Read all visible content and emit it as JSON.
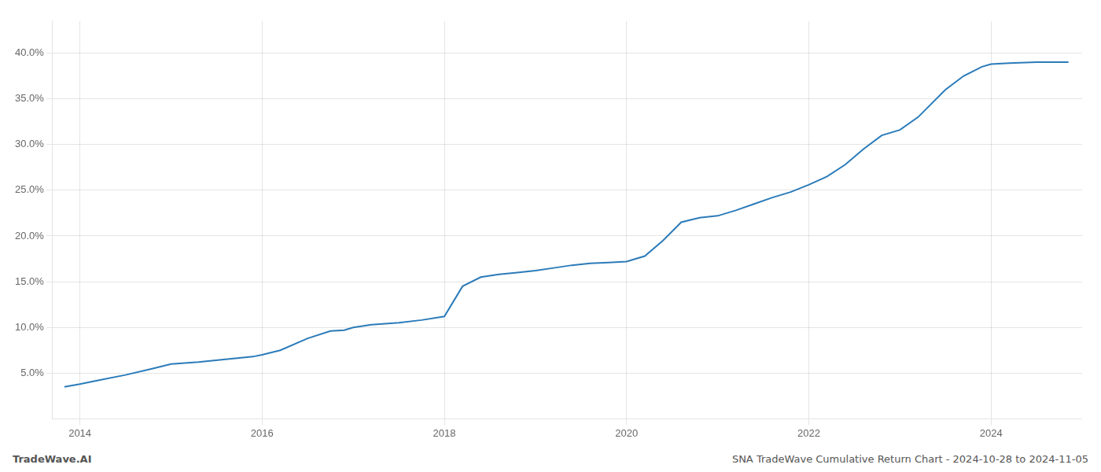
{
  "chart_data": {
    "type": "line",
    "title": "SNA TradeWave Cumulative Return Chart - 2024-10-28 to 2024-11-05",
    "annotations": [
      "TradeWave.AI"
    ],
    "color": "#2b7bb9",
    "x": [
      2013.83,
      2014.0,
      2014.2,
      2014.5,
      2014.8,
      2015.0,
      2015.3,
      2015.6,
      2015.9,
      2016.0,
      2016.2,
      2016.5,
      2016.75,
      2016.9,
      2017.0,
      2017.2,
      2017.5,
      2017.75,
      2018.0,
      2018.2,
      2018.4,
      2018.6,
      2018.8,
      2019.0,
      2019.2,
      2019.4,
      2019.6,
      2019.8,
      2020.0,
      2020.2,
      2020.4,
      2020.6,
      2020.8,
      2021.0,
      2021.2,
      2021.4,
      2021.6,
      2021.8,
      2022.0,
      2022.2,
      2022.4,
      2022.6,
      2022.8,
      2023.0,
      2023.2,
      2023.5,
      2023.7,
      2023.9,
      2024.0,
      2024.2,
      2024.5,
      2024.75,
      2024.85
    ],
    "values": [
      0.035,
      0.038,
      0.042,
      0.048,
      0.055,
      0.06,
      0.062,
      0.065,
      0.068,
      0.07,
      0.075,
      0.088,
      0.096,
      0.097,
      0.1,
      0.103,
      0.105,
      0.108,
      0.112,
      0.145,
      0.155,
      0.158,
      0.16,
      0.162,
      0.165,
      0.168,
      0.17,
      0.171,
      0.172,
      0.178,
      0.195,
      0.215,
      0.22,
      0.222,
      0.228,
      0.235,
      0.242,
      0.248,
      0.256,
      0.265,
      0.278,
      0.295,
      0.31,
      0.316,
      0.33,
      0.36,
      0.375,
      0.385,
      0.388,
      0.389,
      0.39,
      0.39,
      0.39
    ],
    "xlim": [
      2013.7,
      2025.0
    ],
    "ylim": [
      0.0,
      0.435
    ],
    "xticks": [
      2014,
      2016,
      2018,
      2020,
      2022,
      2024
    ],
    "yticks": [
      {
        "value": 0.05,
        "label": "5.0%"
      },
      {
        "value": 0.1,
        "label": "10.0%"
      },
      {
        "value": 0.15,
        "label": "15.0%"
      },
      {
        "value": 0.2,
        "label": "20.0%"
      },
      {
        "value": 0.25,
        "label": "25.0%"
      },
      {
        "value": 0.3,
        "label": "30.0%"
      },
      {
        "value": 0.35,
        "label": "35.0%"
      },
      {
        "value": 0.4,
        "label": "40.0%"
      }
    ],
    "grid": true
  }
}
